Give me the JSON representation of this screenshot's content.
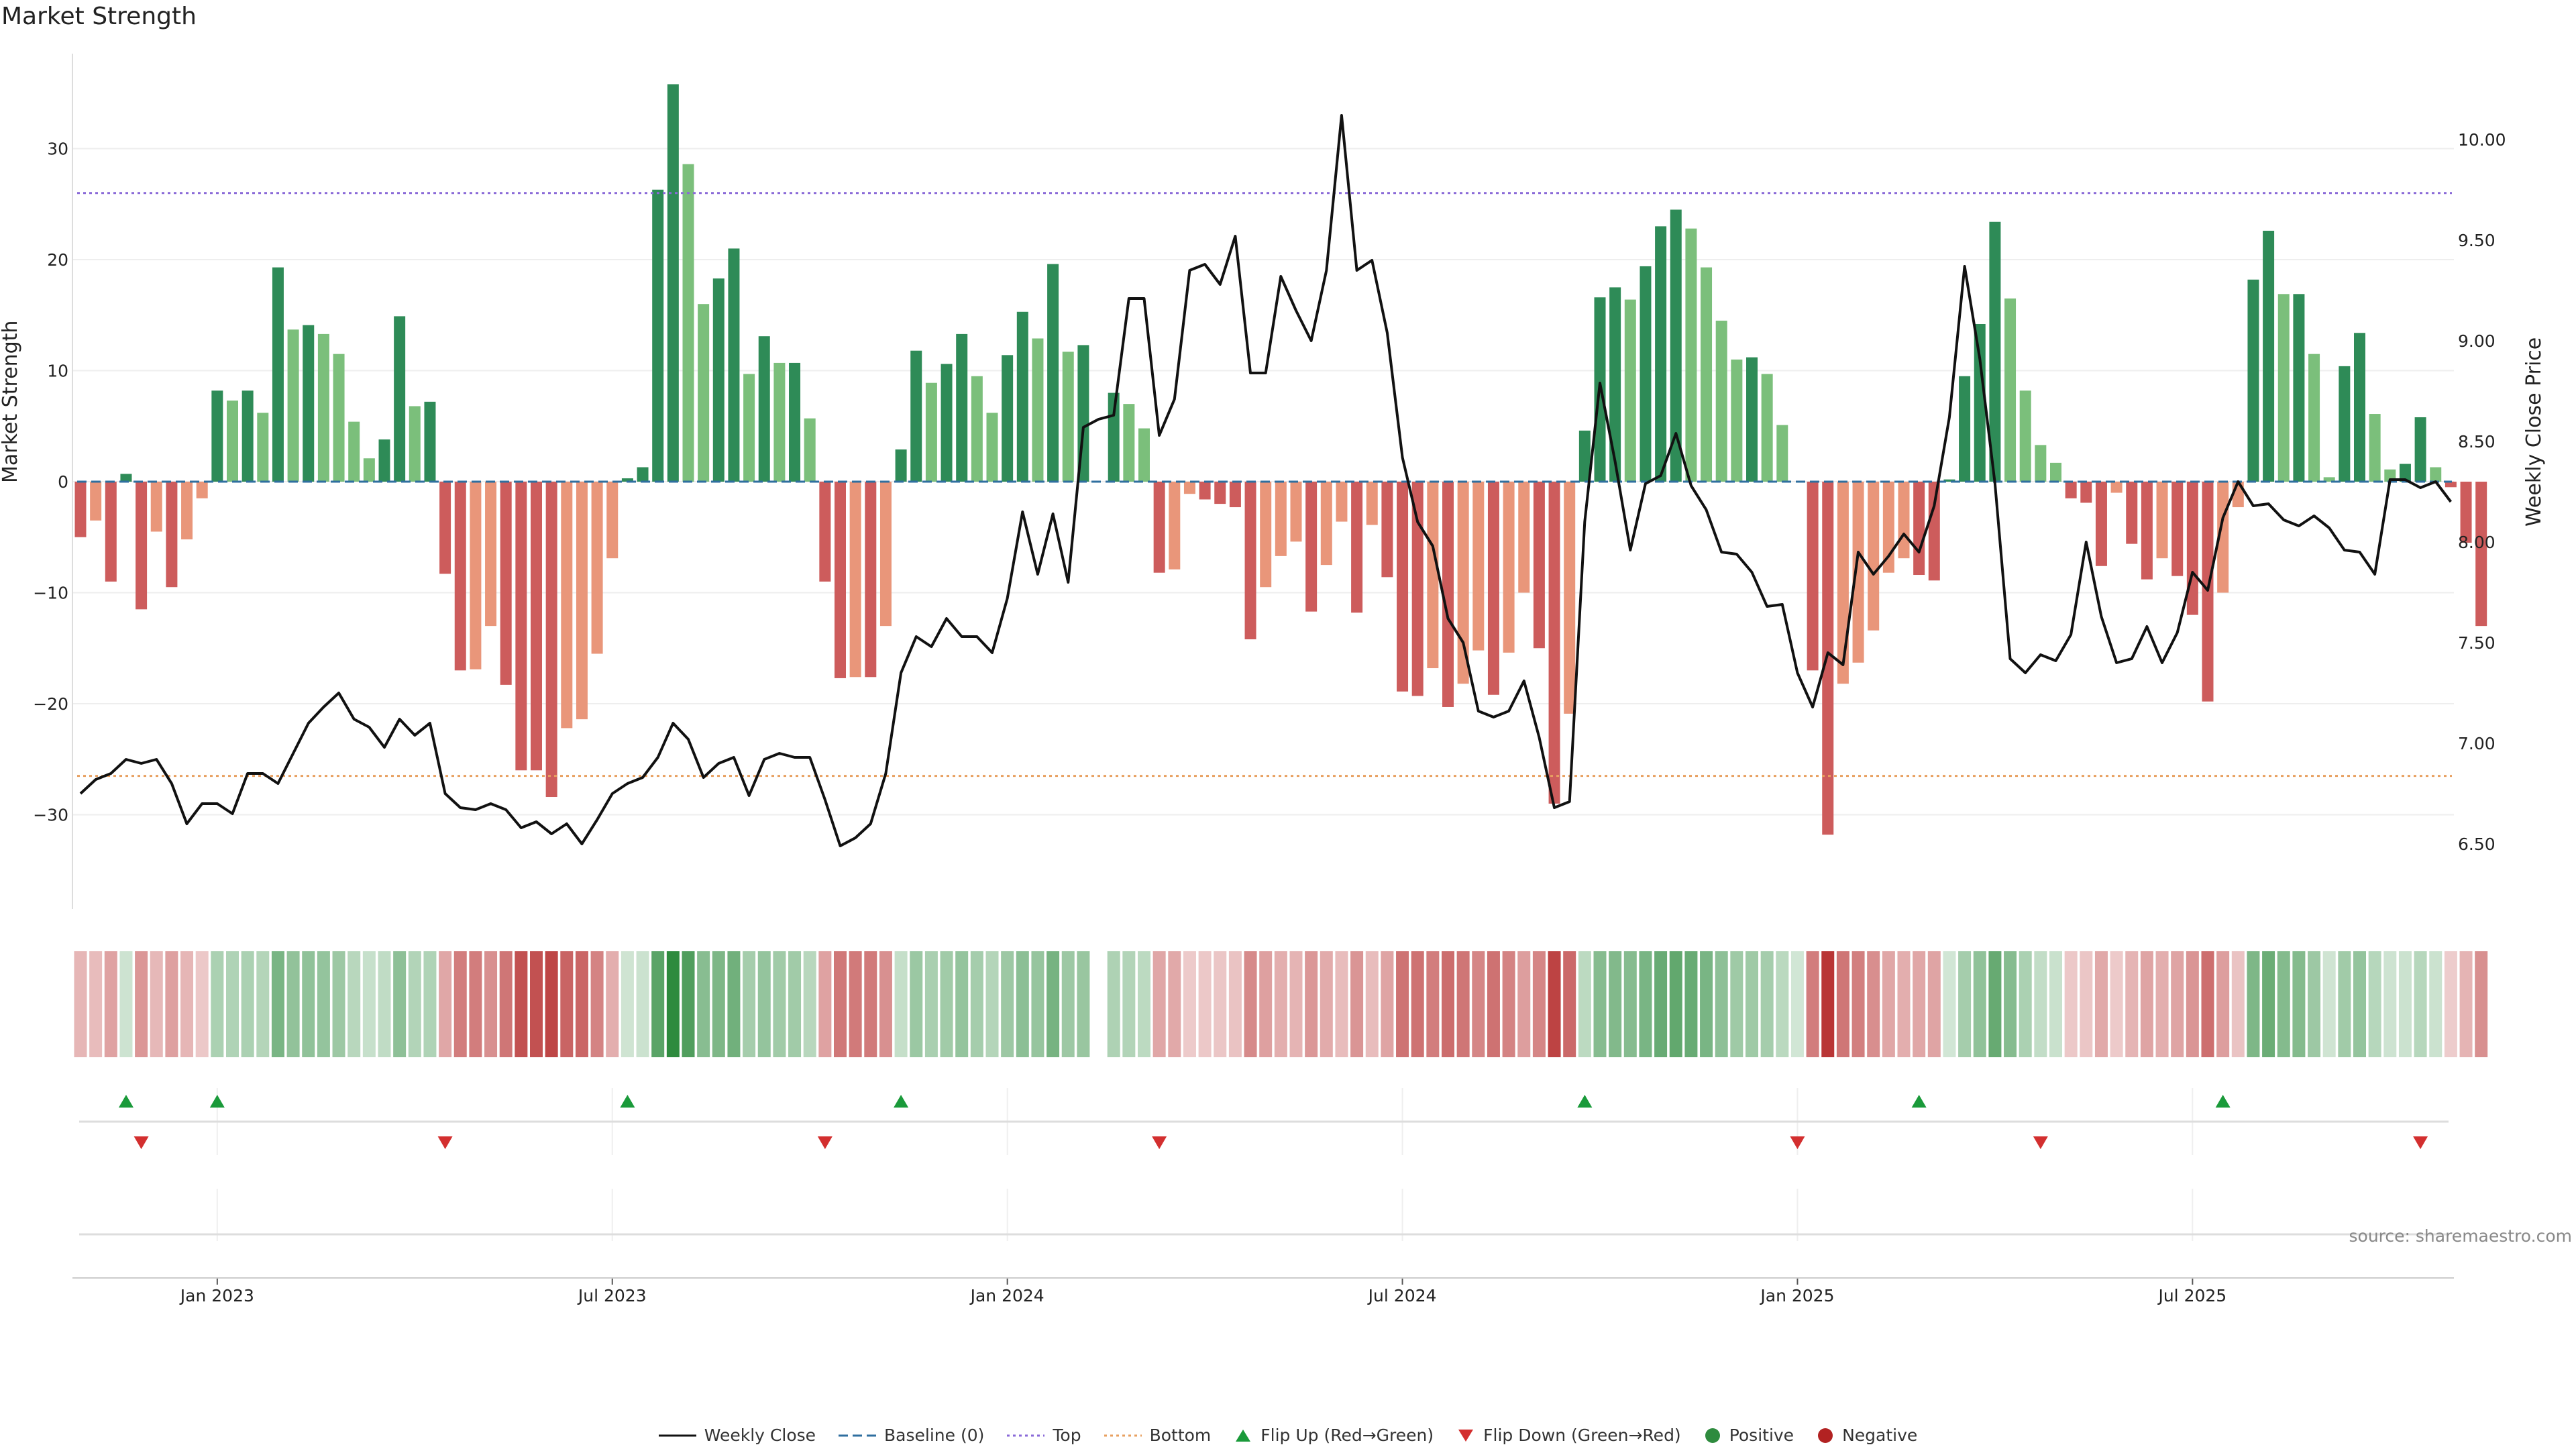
{
  "chart_data": {
    "type": "bar",
    "title": "Market Strength",
    "ylabel_left": "Market Strength",
    "ylabel_right": "Weekly Close Price",
    "ylim_left": [
      -39,
      39
    ],
    "ylim_right": [
      6.2,
      10.4
    ],
    "yticks_left": [
      30,
      20,
      10,
      0,
      -10,
      -20,
      -30
    ],
    "yticks_left_labels": [
      "30",
      "20",
      "10",
      "0",
      "−10",
      "−20",
      "−30"
    ],
    "yticks_right": [
      10.0,
      9.5,
      9.0,
      8.5,
      8.0,
      7.5,
      7.0,
      6.5
    ],
    "yticks_right_labels": [
      "10.00",
      "9.50",
      "9.00",
      "8.50",
      "8.00",
      "7.50",
      "7.00",
      "6.50"
    ],
    "top_line": 26,
    "bottom_line": -26.5,
    "x_tick_labels": [
      "Jan 2023",
      "Jul 2023",
      "Jan 2024",
      "Jul 2024",
      "Jan 2025",
      "Jul 2025"
    ],
    "x_tick_index": [
      9,
      35,
      61,
      87,
      113,
      139
    ],
    "strength": [
      -5,
      -3.5,
      -9,
      0.7,
      -11.5,
      -4.5,
      -9.5,
      -5.2,
      -1.5,
      8.2,
      7.3,
      8.2,
      6.2,
      19.3,
      13.7,
      14.1,
      13.3,
      11.5,
      5.4,
      2.1,
      3.8,
      14.9,
      6.8,
      7.2,
      -8.3,
      -17,
      -16.9,
      -13,
      -18.3,
      -26,
      -26,
      -28.4,
      -22.2,
      -21.4,
      -15.5,
      -6.9,
      0.3,
      1.3,
      26.3,
      35.8,
      28.6,
      16,
      18.3,
      21,
      9.7,
      13.1,
      10.7,
      10.7,
      5.7,
      -9,
      -17.7,
      -17.6,
      -17.6,
      -13,
      2.9,
      11.8,
      8.9,
      10.6,
      13.3,
      9.5,
      6.2,
      11.4,
      15.3,
      12.9,
      19.6,
      11.7,
      12.3,
      0,
      8,
      7,
      4.8,
      -8.2,
      -7.9,
      -1.1,
      -1.6,
      -2,
      -2.3,
      -14.2,
      -9.5,
      -6.7,
      -5.4,
      -11.7,
      -7.5,
      -3.6,
      -11.8,
      -3.9,
      -8.6,
      -18.9,
      -19.3,
      -16.8,
      -20.3,
      -18.2,
      -15.2,
      -19.2,
      -15.4,
      -10,
      -15,
      -29,
      -20.9,
      4.6,
      16.6,
      17.5,
      16.4,
      19.4,
      23,
      24.5,
      22.8,
      19.3,
      14.5,
      11,
      11.2,
      9.7,
      5.1,
      0,
      -17,
      -31.8,
      -18.2,
      -16.3,
      -13.4,
      -8.2,
      -6.9,
      -8.4,
      -8.9,
      0.2,
      9.5,
      14.2,
      23.4,
      16.5,
      8.2,
      3.3,
      1.7,
      -1.5,
      -1.9,
      -7.6,
      -1,
      -5.6,
      -8.8,
      -6.9,
      -8.5,
      -12,
      -19.8,
      -10,
      -2.3,
      18.2,
      22.6,
      16.9,
      16.9,
      11.5,
      0.4,
      10.4,
      13.4,
      6.1,
      1.1,
      1.6,
      5.8,
      1.3,
      -0.5,
      -5.5,
      -13
    ],
    "weekly_close": [
      6.75,
      6.82,
      6.85,
      6.92,
      6.9,
      6.92,
      6.8,
      6.6,
      6.7,
      6.7,
      6.65,
      6.85,
      6.85,
      6.8,
      6.95,
      7.1,
      7.18,
      7.25,
      7.12,
      7.08,
      6.98,
      7.12,
      7.04,
      7.1,
      6.75,
      6.68,
      6.67,
      6.7,
      6.67,
      6.58,
      6.61,
      6.55,
      6.6,
      6.5,
      6.62,
      6.75,
      6.8,
      6.83,
      6.93,
      7.1,
      7.02,
      6.83,
      6.9,
      6.93,
      6.74,
      6.92,
      6.95,
      6.93,
      6.93,
      6.72,
      6.49,
      6.53,
      6.6,
      6.85,
      7.35,
      7.53,
      7.48,
      7.62,
      7.53,
      7.53,
      7.45,
      7.72,
      8.15,
      7.84,
      8.14,
      7.8,
      8.57,
      8.61,
      8.63,
      9.21,
      9.21,
      8.53,
      8.71,
      9.35,
      9.38,
      9.28,
      9.52,
      8.84,
      8.84,
      9.32,
      9.15,
      9.0,
      9.35,
      10.12,
      9.35,
      9.4,
      9.04,
      8.42,
      8.1,
      7.98,
      7.62,
      7.5,
      7.16,
      7.13,
      7.16,
      7.31,
      7.03,
      6.68,
      6.71,
      8.1,
      8.79,
      8.4,
      7.96,
      8.29,
      8.33,
      8.54,
      8.28,
      8.16,
      7.95,
      7.94,
      7.85,
      7.68,
      7.69,
      7.35,
      7.18,
      7.45,
      7.39,
      7.95,
      7.84,
      7.93,
      8.04,
      7.95,
      8.18,
      8.62,
      9.37,
      8.91,
      8.29,
      7.42,
      7.35,
      7.44,
      7.41,
      7.54,
      8.0,
      7.63,
      7.4,
      7.42,
      7.58,
      7.4,
      7.55,
      7.85,
      7.76,
      8.12,
      8.3,
      8.18,
      8.19,
      8.11,
      8.08,
      8.13,
      8.07,
      7.96,
      7.95,
      7.84,
      8.31,
      8.31,
      8.27,
      8.3,
      8.2
    ],
    "heatmap_row": {
      "label": "strength heat strip",
      "note": "one cell per week, colored by sign and magnitude of Market Strength; one blank week (index 67)"
    },
    "flip_up_index": [
      3,
      9,
      36,
      54,
      99,
      121,
      141
    ],
    "flip_down_index": [
      4,
      24,
      49,
      71,
      113,
      129,
      154
    ],
    "legend": [
      {
        "key": "weekly_close",
        "label": "Weekly Close",
        "color": "#111111",
        "style": "solid-line"
      },
      {
        "key": "baseline",
        "label": "Baseline (0)",
        "color": "#2f6f9f",
        "style": "dashed-line"
      },
      {
        "key": "top",
        "label": "Top",
        "color": "#8a6ad8",
        "style": "dotted-line"
      },
      {
        "key": "bottom",
        "label": "Bottom",
        "color": "#e8a060",
        "style": "dotted-line"
      },
      {
        "key": "flip_up",
        "label": "Flip Up (Red→Green)",
        "color": "#1a9a3a",
        "style": "triangle-up"
      },
      {
        "key": "flip_down",
        "label": "Flip Down (Green→Red)",
        "color": "#d32f2f",
        "style": "triangle-down"
      },
      {
        "key": "positive",
        "label": "Positive",
        "color": "#2e8b3e",
        "style": "dot"
      },
      {
        "key": "negative",
        "label": "Negative",
        "color": "#b22222",
        "style": "dot"
      }
    ],
    "colors": {
      "pos_strong": "#2e8b57",
      "pos_light": "#7bbf7b",
      "neg_strong": "#cd5c5c",
      "neg_light": "#e9967a",
      "grid": "#eeeeee"
    }
  },
  "source": "source: sharemaestro.com"
}
